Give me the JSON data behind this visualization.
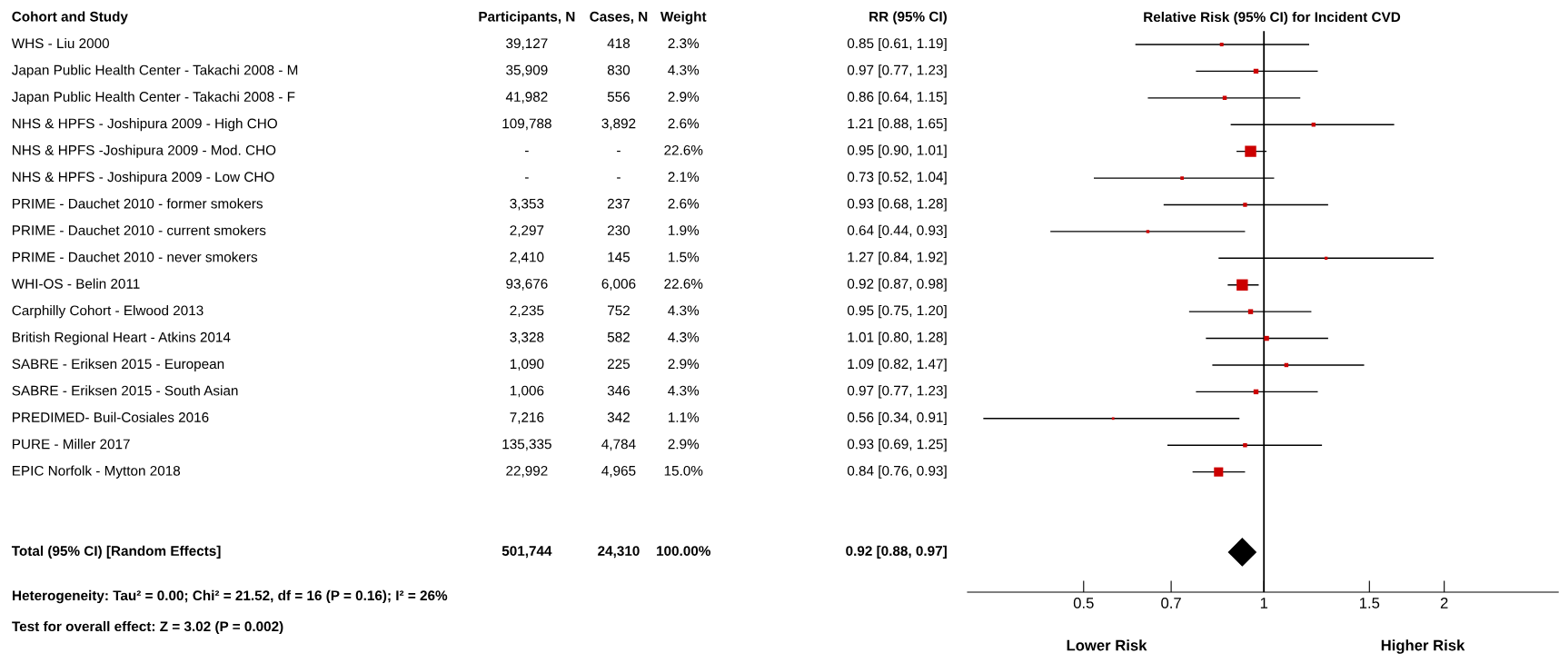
{
  "chart_data": [
    {
      "type": "other",
      "title": "Cohort and Study",
      "categories": [
        "Participants, N",
        "Cases, N",
        "Weight",
        "RR (95% CI)"
      ],
      "y_categories": [
        "WHS - Liu 2000",
        "Japan Public Health Center - Takachi 2008 - M",
        "Japan Public Health Center - Takachi 2008 - F",
        "NHS & HPFS - Joshipura 2009 - High CHO",
        "NHS & HPFS -Joshipura 2009 - Mod. CHO",
        "NHS & HPFS - Joshipura 2009 - Low CHO",
        "PRIME - Dauchet 2010 - former smokers",
        "PRIME - Dauchet 2010 - current smokers",
        "PRIME - Dauchet 2010 - never smokers",
        "WHI-OS - Belin 2011",
        "Carphilly Cohort - Elwood 2013",
        "British Regional Heart - Atkins 2014",
        "SABRE - Eriksen 2015 - European",
        "SABRE - Eriksen 2015 - South Asian",
        "PREDIMED- Buil-Cosiales 2016",
        "PURE - Miller 2017",
        "EPIC Norfolk - Mytton 2018",
        null,
        null,
        "Total (95% CI) [Random Effects]"
      ],
      "cell_labels": [
        [
          "39,127",
          "418",
          "2.3%",
          "0.85 [0.61, 1.19]"
        ],
        [
          "35,909",
          "830",
          "4.3%",
          "0.97 [0.77, 1.23]"
        ],
        [
          "41,982",
          "556",
          "2.9%",
          "0.86 [0.64, 1.15]"
        ],
        [
          "109,788",
          "3,892",
          "2.6%",
          "1.21 [0.88, 1.65]"
        ],
        [
          "-",
          "-",
          "22.6%",
          "0.95 [0.90, 1.01]"
        ],
        [
          "-",
          "-",
          "2.1%",
          "0.73 [0.52, 1.04]"
        ],
        [
          "3,353",
          "237",
          "2.6%",
          "0.93 [0.68, 1.28]"
        ],
        [
          "2,297",
          "230",
          "1.9%",
          "0.64 [0.44, 0.93]"
        ],
        [
          "2,410",
          "145",
          "1.5%",
          "1.27 [0.84, 1.92]"
        ],
        [
          "93,676",
          "6,006",
          "22.6%",
          "0.92 [0.87, 0.98]"
        ],
        [
          "2,235",
          "752",
          "4.3%",
          "0.95 [0.75, 1.20]"
        ],
        [
          "3,328",
          "582",
          "4.3%",
          "1.01 [0.80, 1.28]"
        ],
        [
          "1,090",
          "225",
          "2.9%",
          "1.09 [0.82, 1.47]"
        ],
        [
          "1,006",
          "346",
          "4.3%",
          "0.97 [0.77, 1.23]"
        ],
        [
          "7,216",
          "342",
          "1.1%",
          "0.56 [0.34, 0.91]"
        ],
        [
          "135,335",
          "4,784",
          "2.9%",
          "0.93 [0.69, 1.25]"
        ],
        [
          "22,992",
          "4,965",
          "15.0%",
          "0.84 [0.76, 0.93]"
        ],
        [
          null,
          null,
          null,
          null
        ],
        [
          null,
          null,
          null,
          null
        ],
        [
          "501,744",
          "24,310",
          "100.00%",
          "0.92 [0.88, 0.97]"
        ]
      ],
      "annotations": [
        "Heterogeneity: Tau² = 0.00; Chi² = 21.52, df = 16 (P = 0.16); I² = 26%",
        "Test for overall effect: Z = 3.02 (P = 0.002)"
      ]
    },
    {
      "type": "scatter",
      "title": "Relative Risk (95% CI) for Incident CVD",
      "orientation": "horizontal",
      "categories": [
        null,
        null,
        null,
        null,
        null,
        null,
        null,
        null,
        null,
        null,
        null,
        null,
        null,
        null,
        null,
        null,
        null,
        null,
        null,
        null,
        null
      ],
      "series": [
        {
          "type": "bubble",
          "color": "#cc0000",
          "marker": "square",
          "values": [
            0.85,
            0.97,
            0.86,
            1.21,
            0.95,
            0.73,
            0.93,
            0.64,
            1.27,
            0.92,
            0.95,
            1.01,
            1.09,
            0.97,
            0.56,
            0.93,
            0.84,
            null,
            null,
            null,
            null
          ],
          "sizes": [
            0.1,
            0.19,
            0.13,
            0.12,
            1,
            0.09,
            0.12,
            0.08,
            0.07,
            1,
            0.19,
            0.19,
            0.13,
            0.19,
            0.05,
            0.13,
            0.66,
            null,
            null,
            null,
            null
          ],
          "errors": [
            [
              0.61,
              1.19
            ],
            [
              0.77,
              1.23
            ],
            [
              0.64,
              1.15
            ],
            [
              0.88,
              1.65
            ],
            [
              0.9,
              1.01
            ],
            [
              0.52,
              1.04
            ],
            [
              0.68,
              1.28
            ],
            [
              0.44,
              0.93
            ],
            [
              0.84,
              1.92
            ],
            [
              0.87,
              0.98
            ],
            [
              0.75,
              1.2
            ],
            [
              0.8,
              1.28
            ],
            [
              0.82,
              1.47
            ],
            [
              0.77,
              1.23
            ],
            [
              0.34,
              0.91
            ],
            [
              0.69,
              1.25
            ],
            [
              0.76,
              0.93
            ],
            null,
            null,
            null,
            null
          ]
        },
        {
          "color": "#000000",
          "marker": "diamond",
          "values": [
            null,
            null,
            null,
            null,
            null,
            null,
            null,
            null,
            null,
            null,
            null,
            null,
            null,
            null,
            null,
            null,
            null,
            null,
            null,
            0.92,
            null
          ]
        }
      ],
      "log": "x",
      "xlim": [
        0.32,
        3.1
      ],
      "xticks": [
        0.5,
        0.7,
        1,
        1.5,
        2
      ],
      "ref_lines": [
        {
          "axis": "x",
          "value": 1,
          "color": "#000000"
        }
      ],
      "annotations": [
        "Lower Risk",
        "Higher Risk"
      ],
      "grid": false
    }
  ]
}
